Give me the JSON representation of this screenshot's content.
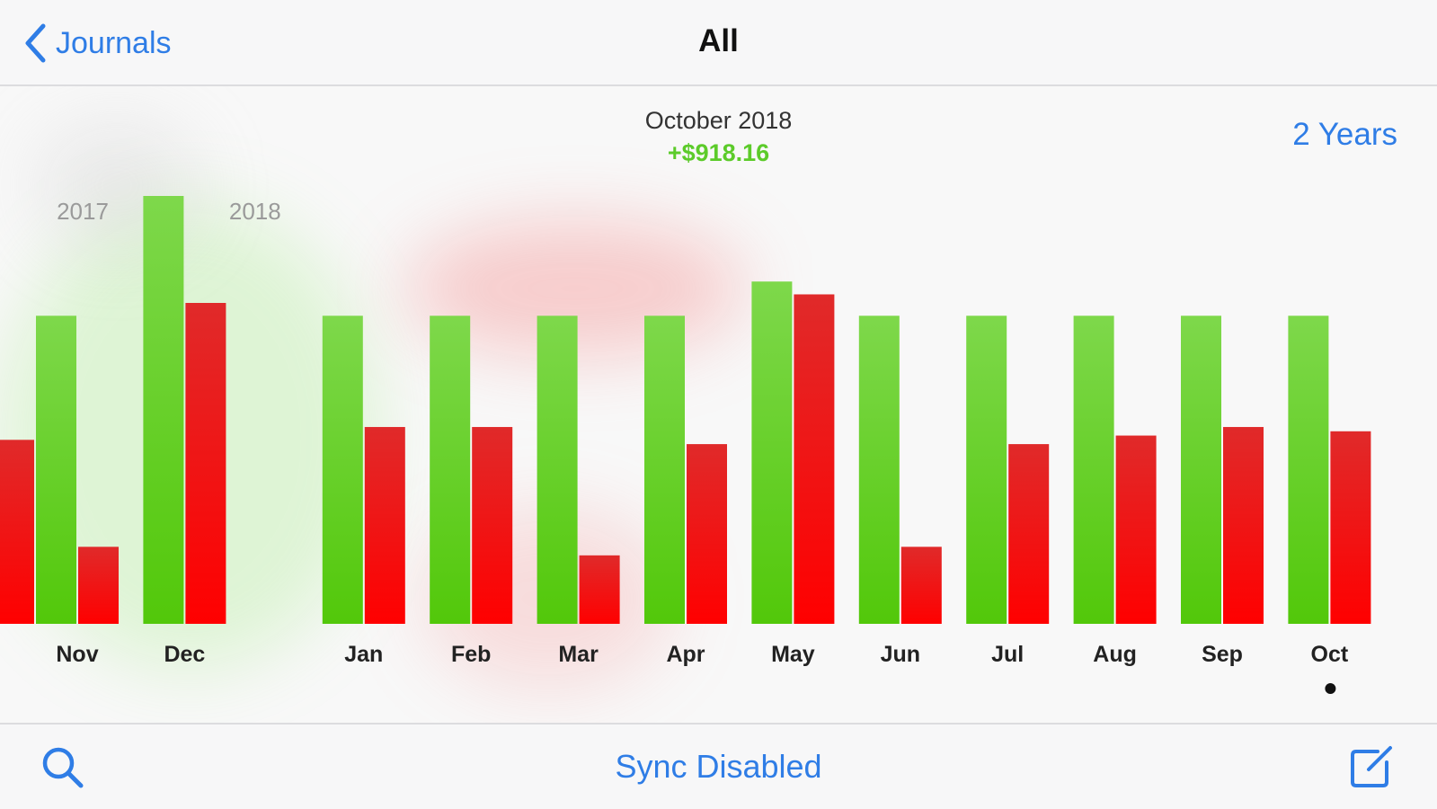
{
  "nav": {
    "back_label": "Journals",
    "title": "All"
  },
  "summary": {
    "month": "October 2018",
    "amount": "+$918.16",
    "range_label": "2 Years"
  },
  "toolbar": {
    "sync_label": "Sync Disabled"
  },
  "icons": {
    "back": "chevron-left-icon",
    "search": "search-icon",
    "compose": "compose-icon"
  },
  "colors": {
    "accent": "#2f7de6",
    "income": "#5ccb2a",
    "expense": "#ee1111"
  },
  "chart_data": {
    "type": "bar",
    "year_labels": [
      {
        "label": "2017",
        "before_category": "Nov"
      },
      {
        "label": "2018",
        "before_category": "Jan"
      }
    ],
    "categories": [
      "Nov",
      "Dec",
      "Jan",
      "Feb",
      "Mar",
      "Apr",
      "May",
      "Jun",
      "Jul",
      "Aug",
      "Sep",
      "Oct"
    ],
    "series": [
      {
        "key": "income",
        "color": "#5ccb2a",
        "values": [
          72,
          100,
          72,
          72,
          72,
          72,
          80,
          72,
          72,
          72,
          72,
          72
        ]
      },
      {
        "key": "expense",
        "color": "#ee1111",
        "values": [
          18,
          75,
          46,
          46,
          16,
          42,
          77,
          18,
          42,
          44,
          46,
          45
        ]
      }
    ],
    "partial_expense_before_first": 43,
    "selected_category": "Oct",
    "ylim": [
      0,
      100
    ],
    "grid": false,
    "legend": "none"
  }
}
